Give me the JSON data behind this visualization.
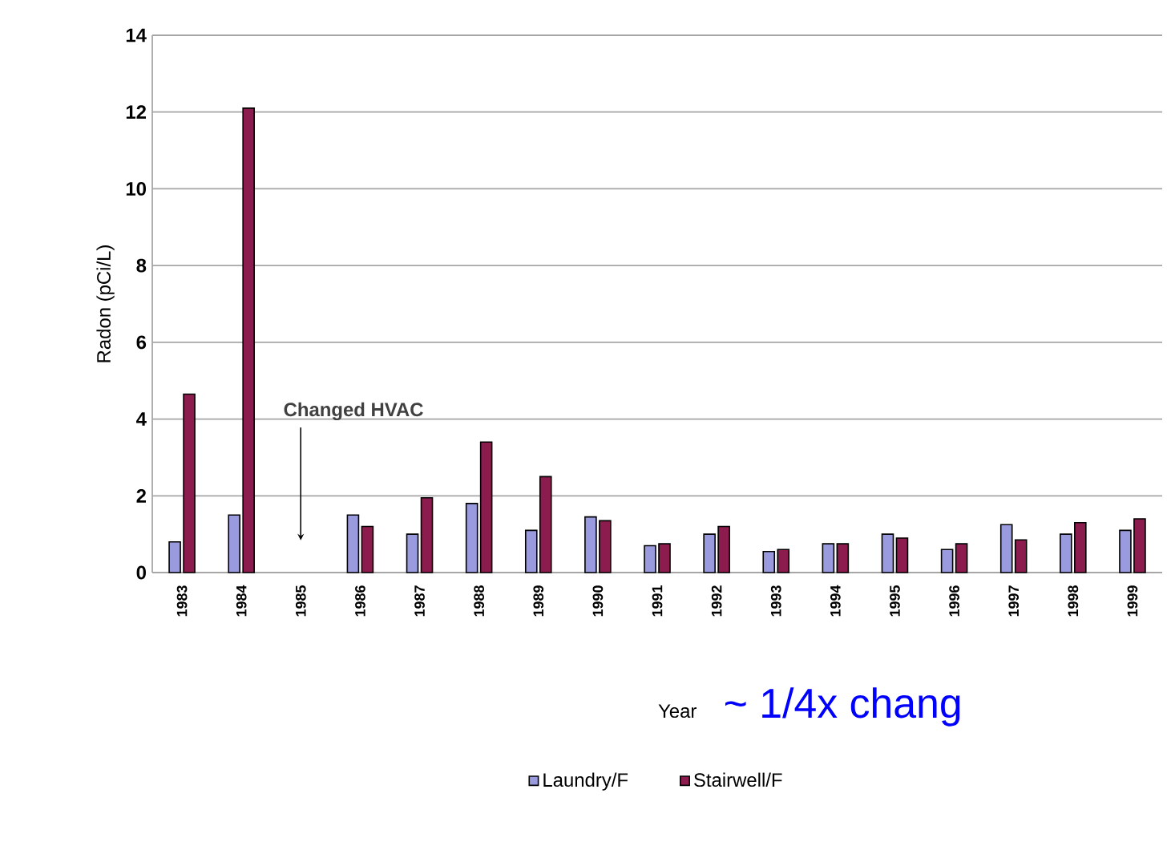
{
  "chart_data": {
    "type": "bar",
    "xlabel": "Year",
    "ylabel": "Radon (pCi/L)",
    "categories": [
      "1983",
      "1984",
      "1985",
      "1986",
      "1987",
      "1988",
      "1989",
      "1990",
      "1991",
      "1992",
      "1993",
      "1994",
      "1995",
      "1996",
      "1997",
      "1998",
      "1999"
    ],
    "series": [
      {
        "name": "Laundry/F",
        "color": "#9a9ade",
        "values": [
          0.8,
          1.5,
          null,
          1.5,
          1.0,
          1.8,
          1.1,
          1.45,
          0.7,
          1.0,
          0.55,
          0.75,
          1.0,
          0.6,
          1.25,
          1.0,
          1.1
        ]
      },
      {
        "name": "Stairwell/F",
        "color": "#8c1c4e",
        "values": [
          4.65,
          12.1,
          null,
          1.2,
          1.95,
          3.4,
          2.5,
          1.35,
          0.75,
          1.2,
          0.6,
          0.75,
          0.9,
          0.75,
          0.85,
          1.3,
          1.4
        ]
      }
    ],
    "ylim": [
      0,
      14
    ],
    "yticks": [
      0,
      2,
      4,
      6,
      8,
      10,
      12,
      14
    ],
    "grid": "y",
    "legend": "bottom",
    "annotations": [
      "Changed HVAC",
      "~ 1/4x chang"
    ]
  }
}
